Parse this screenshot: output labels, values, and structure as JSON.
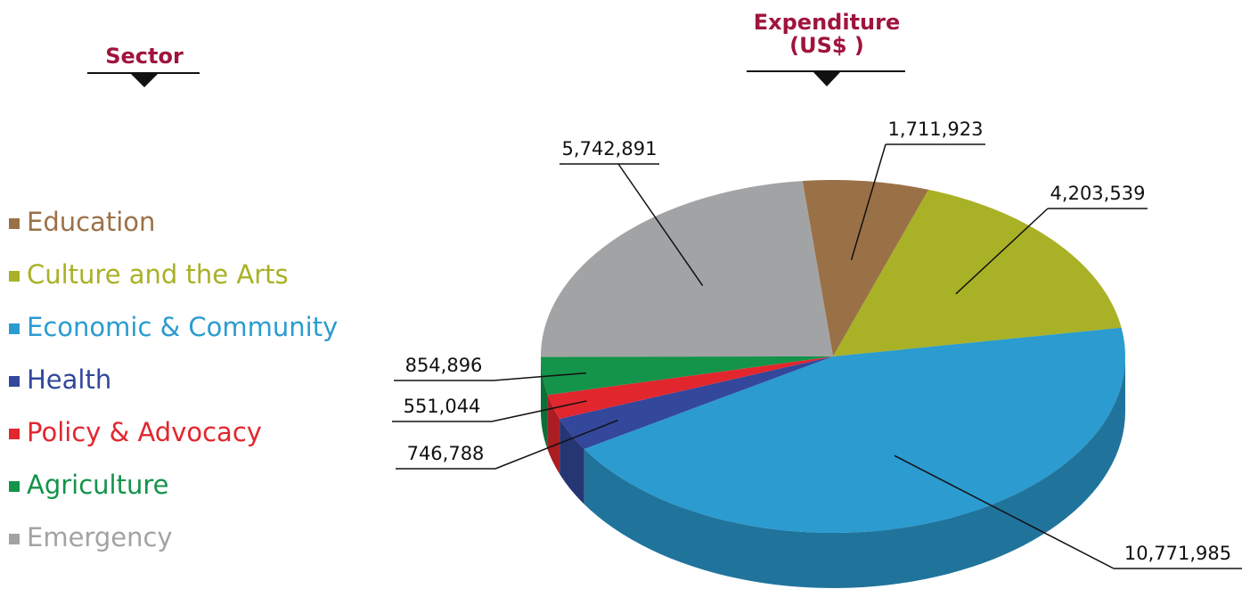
{
  "chart_data": {
    "type": "pie",
    "legend_title": "Sector",
    "value_title_lines": [
      "Expenditure",
      "(US$ )"
    ],
    "categories": [
      "Education",
      "Culture and the Arts",
      "Economic & Community",
      "Health",
      "Policy & Advocacy",
      "Agriculture",
      "Emergency"
    ],
    "values": [
      1711923,
      4203539,
      10771985,
      746788,
      551044,
      854896,
      5742891
    ],
    "value_labels": [
      "1,711,923",
      "4,203,539",
      "10,771,985",
      "746,788",
      "551,044",
      "854,896",
      "5,742,891"
    ],
    "colors": [
      "#9a7147",
      "#a9b126",
      "#2b9bd0",
      "#33479b",
      "#e2262e",
      "#14934a",
      "#a2a3a5"
    ],
    "legend": "left"
  }
}
